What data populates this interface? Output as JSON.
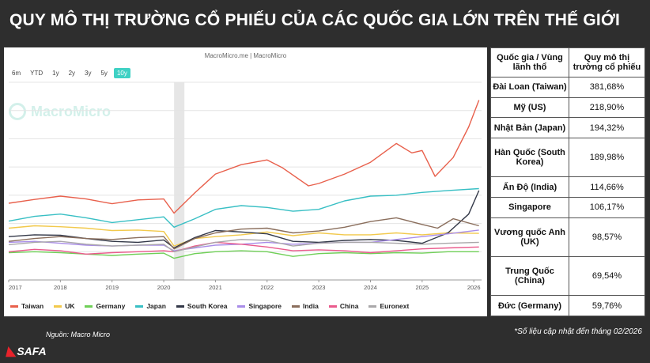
{
  "title": "QUY MÔ THỊ TRƯỜNG CỔ PHIẾU CỦA CÁC QUỐC GIA LỚN TRÊN THẾ GIỚI",
  "chart_source": "MacroMicro.me | MacroMicro",
  "watermark_text": "MacroMicro",
  "range_buttons": [
    "6m",
    "YTD",
    "1y",
    "2y",
    "3y",
    "5y",
    "10y"
  ],
  "active_range": "10y",
  "source_note": "Nguồn: Macro Micro",
  "update_note": "*Số liệu cập nhật đến tháng 02/2026",
  "brand": "SAFA",
  "table": {
    "headers": [
      "Quốc gia / Vùng lãnh thổ",
      "Quy mô thị trường cổ phiếu"
    ],
    "rows": [
      {
        "country": "Đài Loan (Taiwan)",
        "value": "381,68%"
      },
      {
        "country": "Mỹ (US)",
        "value": "218,90%"
      },
      {
        "country": "Nhật Bản (Japan)",
        "value": "194,32%"
      },
      {
        "country": "Hàn Quốc (South Korea)",
        "value": "189,98%"
      },
      {
        "country": "Ấn Độ (India)",
        "value": "114,66%"
      },
      {
        "country": "Singapore",
        "value": "106,17%"
      },
      {
        "country": "Vương quốc Anh (UK)",
        "value": "98,57%"
      },
      {
        "country": "Trung Quốc (China)",
        "value": "69,54%"
      },
      {
        "country": "Đức (Germany)",
        "value": "59,76%"
      }
    ]
  },
  "chart_data": {
    "type": "line",
    "x_ticks": [
      "2017",
      "2018",
      "2019",
      "2020",
      "2021",
      "2022",
      "2023",
      "2024",
      "2025",
      "2026"
    ],
    "xlim": [
      2017.0,
      2026.15
    ],
    "ylim": [
      0,
      420
    ],
    "grid": true,
    "legend_position": "bottom",
    "shaded_period": [
      2020.2,
      2020.4
    ],
    "series": [
      {
        "name": "Taiwan",
        "color": "#e8604c",
        "points": [
          [
            2017,
            163
          ],
          [
            2017.5,
            171
          ],
          [
            2018,
            178
          ],
          [
            2018.5,
            172
          ],
          [
            2019,
            162
          ],
          [
            2019.5,
            170
          ],
          [
            2020,
            172
          ],
          [
            2020.2,
            142
          ],
          [
            2020.6,
            185
          ],
          [
            2021,
            225
          ],
          [
            2021.5,
            245
          ],
          [
            2022,
            255
          ],
          [
            2022.3,
            238
          ],
          [
            2022.8,
            200
          ],
          [
            2023,
            205
          ],
          [
            2023.5,
            225
          ],
          [
            2024,
            250
          ],
          [
            2024.5,
            290
          ],
          [
            2024.8,
            270
          ],
          [
            2025,
            275
          ],
          [
            2025.25,
            220
          ],
          [
            2025.6,
            260
          ],
          [
            2025.9,
            325
          ],
          [
            2026.1,
            382
          ]
        ]
      },
      {
        "name": "UK",
        "color": "#f2c94c",
        "points": [
          [
            2017,
            110
          ],
          [
            2017.5,
            115
          ],
          [
            2018,
            113
          ],
          [
            2018.5,
            110
          ],
          [
            2019,
            105
          ],
          [
            2019.5,
            106
          ],
          [
            2020,
            103
          ],
          [
            2020.2,
            72
          ],
          [
            2020.6,
            88
          ],
          [
            2021,
            92
          ],
          [
            2021.5,
            96
          ],
          [
            2022,
            102
          ],
          [
            2022.5,
            94
          ],
          [
            2023,
            100
          ],
          [
            2023.5,
            96
          ],
          [
            2024,
            96
          ],
          [
            2024.5,
            100
          ],
          [
            2025,
            96
          ],
          [
            2025.5,
            100
          ],
          [
            2026.1,
            99
          ]
        ]
      },
      {
        "name": "Germany",
        "color": "#6fcf57",
        "points": [
          [
            2017,
            58
          ],
          [
            2017.5,
            60
          ],
          [
            2018,
            58
          ],
          [
            2018.5,
            55
          ],
          [
            2019,
            52
          ],
          [
            2019.5,
            55
          ],
          [
            2020,
            57
          ],
          [
            2020.2,
            46
          ],
          [
            2020.6,
            56
          ],
          [
            2021,
            60
          ],
          [
            2021.5,
            62
          ],
          [
            2022,
            60
          ],
          [
            2022.5,
            50
          ],
          [
            2023,
            56
          ],
          [
            2023.5,
            58
          ],
          [
            2024,
            56
          ],
          [
            2024.5,
            58
          ],
          [
            2025,
            57
          ],
          [
            2025.5,
            60
          ],
          [
            2026.1,
            60
          ]
        ]
      },
      {
        "name": "Japan",
        "color": "#38bfc4",
        "points": [
          [
            2017,
            125
          ],
          [
            2017.5,
            135
          ],
          [
            2018,
            140
          ],
          [
            2018.5,
            132
          ],
          [
            2019,
            122
          ],
          [
            2019.5,
            128
          ],
          [
            2020,
            134
          ],
          [
            2020.2,
            112
          ],
          [
            2020.6,
            130
          ],
          [
            2021,
            150
          ],
          [
            2021.5,
            158
          ],
          [
            2022,
            154
          ],
          [
            2022.5,
            146
          ],
          [
            2023,
            150
          ],
          [
            2023.5,
            168
          ],
          [
            2024,
            178
          ],
          [
            2024.5,
            180
          ],
          [
            2025,
            186
          ],
          [
            2025.5,
            190
          ],
          [
            2026.1,
            194
          ]
        ]
      },
      {
        "name": "South Korea",
        "color": "#333848",
        "points": [
          [
            2017,
            92
          ],
          [
            2017.5,
            96
          ],
          [
            2018,
            95
          ],
          [
            2018.5,
            88
          ],
          [
            2019,
            82
          ],
          [
            2019.5,
            80
          ],
          [
            2020,
            85
          ],
          [
            2020.2,
            68
          ],
          [
            2020.6,
            90
          ],
          [
            2021,
            105
          ],
          [
            2021.5,
            102
          ],
          [
            2022,
            98
          ],
          [
            2022.5,
            82
          ],
          [
            2023,
            80
          ],
          [
            2023.5,
            84
          ],
          [
            2024,
            86
          ],
          [
            2024.5,
            84
          ],
          [
            2025,
            78
          ],
          [
            2025.5,
            100
          ],
          [
            2025.9,
            140
          ],
          [
            2026.1,
            190
          ]
        ]
      },
      {
        "name": "Singapore",
        "color": "#a98de8",
        "points": [
          [
            2017,
            80
          ],
          [
            2017.5,
            82
          ],
          [
            2018,
            78
          ],
          [
            2018.5,
            74
          ],
          [
            2019,
            72
          ],
          [
            2019.5,
            74
          ],
          [
            2020,
            74
          ],
          [
            2020.2,
            62
          ],
          [
            2020.6,
            68
          ],
          [
            2021,
            74
          ],
          [
            2021.5,
            76
          ],
          [
            2022,
            80
          ],
          [
            2022.5,
            76
          ],
          [
            2023,
            78
          ],
          [
            2023.5,
            80
          ],
          [
            2024,
            80
          ],
          [
            2024.5,
            86
          ],
          [
            2025,
            92
          ],
          [
            2025.5,
            98
          ],
          [
            2026.1,
            106
          ]
        ]
      },
      {
        "name": "India",
        "color": "#8a6e5c",
        "points": [
          [
            2017,
            82
          ],
          [
            2017.5,
            88
          ],
          [
            2018,
            92
          ],
          [
            2018.5,
            88
          ],
          [
            2019,
            86
          ],
          [
            2019.5,
            90
          ],
          [
            2020,
            92
          ],
          [
            2020.2,
            66
          ],
          [
            2020.6,
            88
          ],
          [
            2021,
            100
          ],
          [
            2021.5,
            108
          ],
          [
            2022,
            110
          ],
          [
            2022.5,
            100
          ],
          [
            2023,
            104
          ],
          [
            2023.5,
            112
          ],
          [
            2024,
            124
          ],
          [
            2024.5,
            132
          ],
          [
            2025,
            118
          ],
          [
            2025.3,
            110
          ],
          [
            2025.6,
            130
          ],
          [
            2026.1,
            115
          ]
        ]
      },
      {
        "name": "China",
        "color": "#ea5a8c",
        "points": [
          [
            2017,
            60
          ],
          [
            2017.5,
            65
          ],
          [
            2018,
            62
          ],
          [
            2018.5,
            55
          ],
          [
            2019,
            58
          ],
          [
            2019.5,
            60
          ],
          [
            2020,
            62
          ],
          [
            2020.2,
            60
          ],
          [
            2020.6,
            72
          ],
          [
            2021,
            80
          ],
          [
            2021.5,
            76
          ],
          [
            2022,
            70
          ],
          [
            2022.5,
            62
          ],
          [
            2023,
            64
          ],
          [
            2023.5,
            62
          ],
          [
            2024,
            58
          ],
          [
            2024.5,
            62
          ],
          [
            2025,
            66
          ],
          [
            2025.5,
            68
          ],
          [
            2026.1,
            70
          ]
        ]
      },
      {
        "name": "Euronext",
        "color": "#aaa8aa",
        "points": [
          [
            2017,
            75
          ],
          [
            2017.5,
            80
          ],
          [
            2018,
            82
          ],
          [
            2018.5,
            76
          ],
          [
            2019,
            72
          ],
          [
            2019.5,
            74
          ],
          [
            2020,
            76
          ],
          [
            2020.2,
            60
          ],
          [
            2020.6,
            70
          ],
          [
            2021,
            80
          ],
          [
            2021.5,
            86
          ],
          [
            2022,
            84
          ],
          [
            2022.5,
            72
          ],
          [
            2023,
            78
          ],
          [
            2023.5,
            80
          ],
          [
            2024,
            80
          ],
          [
            2024.5,
            78
          ],
          [
            2025,
            76
          ],
          [
            2025.5,
            78
          ],
          [
            2026.1,
            80
          ]
        ]
      }
    ]
  }
}
